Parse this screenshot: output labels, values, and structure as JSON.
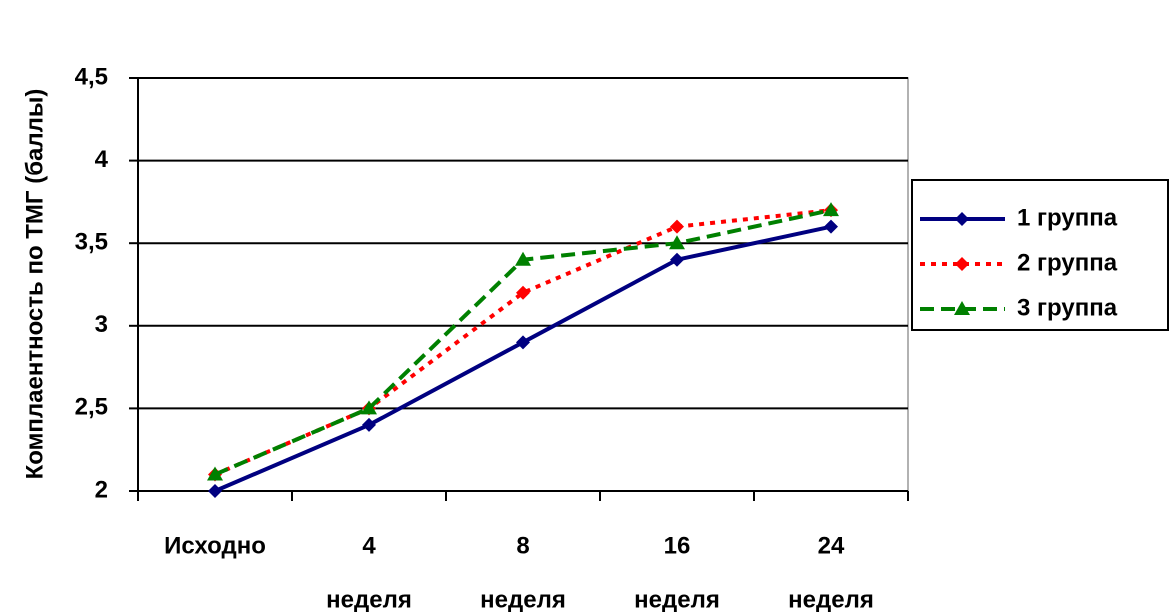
{
  "chart_data": {
    "type": "line",
    "y_label": "Комплаентность по ТМГ (баллы)",
    "categories": [
      [
        "Исходно"
      ],
      [
        "4",
        "неделя"
      ],
      [
        "8",
        "неделя"
      ],
      [
        "16",
        "неделя"
      ],
      [
        "24",
        "неделя"
      ]
    ],
    "series": [
      {
        "name": "1 группа",
        "color": "#000080",
        "dash": "solid",
        "marker": "diamond",
        "values": [
          2,
          2.4,
          2.9,
          3.4,
          3.6
        ]
      },
      {
        "name": "2 группа",
        "color": "#ff0000",
        "dash": "dotted",
        "marker": "diamond",
        "values": [
          2.1,
          2.5,
          3.2,
          3.6,
          3.7
        ]
      },
      {
        "name": "3 группа",
        "color": "#008000",
        "dash": "dashed",
        "marker": "triangle",
        "values": [
          2.1,
          2.5,
          3.4,
          3.5,
          3.7
        ]
      }
    ],
    "ylim": [
      2,
      4.5
    ],
    "yticks": [
      2,
      {
        "value": 2.5,
        "label": "2,5"
      },
      3,
      {
        "value": 3.5,
        "label": "3,5"
      },
      4,
      {
        "value": 4.5,
        "label": "4,5"
      }
    ],
    "grid": true,
    "legend": "right"
  }
}
